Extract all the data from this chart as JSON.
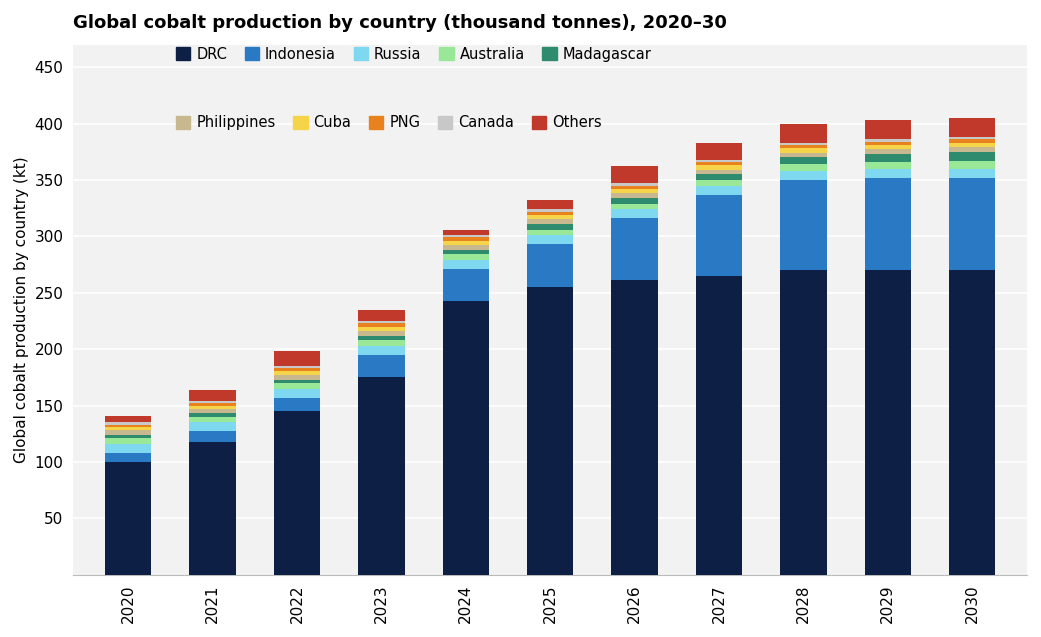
{
  "years": [
    2020,
    2021,
    2022,
    2023,
    2024,
    2025,
    2026,
    2027,
    2028,
    2029,
    2030
  ],
  "title": "Global cobalt production by country (thousand tonnes), 2020–30",
  "ylabel": "Global cobalt production by country (kt)",
  "countries": [
    "DRC",
    "Indonesia",
    "Russia",
    "Australia",
    "Madagascar",
    "Philippines",
    "Cuba",
    "PNG",
    "Canada",
    "Others"
  ],
  "colors": [
    "#0d1f45",
    "#2979c4",
    "#7dd8f0",
    "#98e898",
    "#2e8b6e",
    "#c8b890",
    "#f5d44a",
    "#e8821e",
    "#c8c8c8",
    "#c0392b"
  ],
  "data": {
    "DRC": [
      100,
      118,
      145,
      175,
      243,
      255,
      261,
      265,
      270,
      270,
      270
    ],
    "Indonesia": [
      8,
      9,
      12,
      20,
      28,
      38,
      55,
      72,
      80,
      82,
      82
    ],
    "Russia": [
      8,
      8,
      8,
      8,
      8,
      8,
      8,
      8,
      8,
      8,
      8
    ],
    "Australia": [
      5,
      5,
      5,
      5,
      5,
      5,
      5,
      5,
      6,
      6,
      7
    ],
    "Madagascar": [
      3,
      3,
      3,
      4,
      4,
      5,
      5,
      5,
      6,
      7,
      8
    ],
    "Philippines": [
      4,
      4,
      4,
      4,
      4,
      4,
      4,
      4,
      4,
      4,
      4
    ],
    "Cuba": [
      3,
      3,
      4,
      4,
      4,
      4,
      4,
      4,
      4,
      4,
      4
    ],
    "PNG": [
      2,
      2,
      2,
      3,
      3,
      3,
      3,
      3,
      3,
      3,
      3
    ],
    "Canada": [
      2,
      2,
      2,
      2,
      2,
      2,
      2,
      2,
      2,
      2,
      2
    ],
    "Others": [
      6,
      10,
      13,
      10,
      5,
      8,
      15,
      15,
      17,
      17,
      17
    ]
  },
  "ylim": [
    0,
    470
  ],
  "yticks": [
    50,
    100,
    150,
    200,
    250,
    300,
    350,
    400,
    450
  ],
  "background_color": "#ffffff",
  "plot_bg_color": "#f2f2f2",
  "bar_width": 0.55,
  "legend_row1": [
    "DRC",
    "Indonesia",
    "Russia",
    "Australia",
    "Madagascar"
  ],
  "legend_row2": [
    "Philippines",
    "Cuba",
    "PNG",
    "Canada",
    "Others"
  ]
}
